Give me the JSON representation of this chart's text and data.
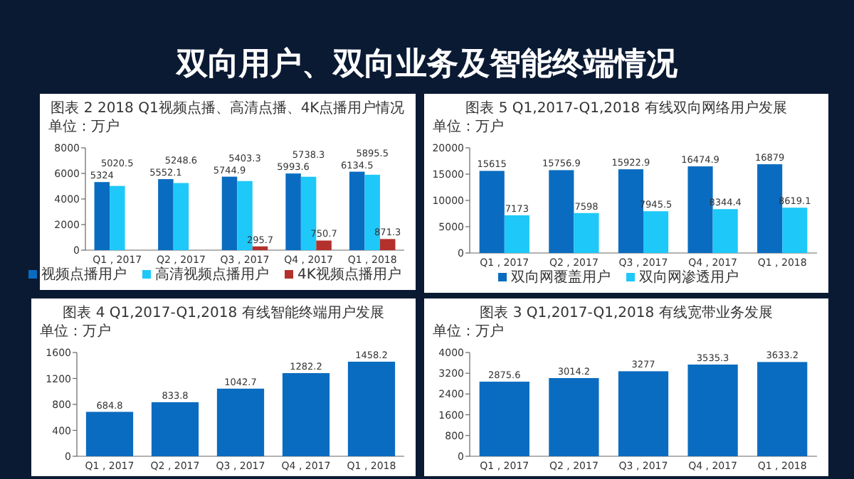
{
  "chart_data": [
    {
      "type": "other",
      "title": "双向用户、双向业务及智能终端情况"
    },
    {
      "type": "bar",
      "title": "图表 2 2018 Q1视频点播、高清点播、4K点播用户情况",
      "annotations": [
        "单位：万户"
      ],
      "categories": [
        "Q1 , 2017",
        "Q2 , 2017",
        "Q3 , 2017",
        "Q4 , 2017",
        "Q1 , 2018"
      ],
      "series": [
        {
          "name": "视频点播用户",
          "color": "#0a6cc0",
          "values": [
            5324,
            5552.1,
            5744.9,
            5993.6,
            6134.5
          ]
        },
        {
          "name": "高清视频点播用户",
          "color": "#1ec8f8",
          "values": [
            5020.5,
            5248.6,
            5403.3,
            5738.3,
            5895.5
          ]
        },
        {
          "name": "4K视频点播用户",
          "color": "#b3302c",
          "values": [
            null,
            null,
            295.7,
            750.7,
            871.3
          ]
        }
      ],
      "ylim": [
        0,
        8000
      ],
      "yticks": [
        0,
        2000,
        4000,
        6000,
        8000
      ],
      "data_labels": true,
      "legend": "bottom"
    },
    {
      "type": "bar",
      "title": "图表 5 Q1,2017-Q1,2018  有线双向网络用户发展",
      "annotations": [
        "单位：万户"
      ],
      "categories": [
        "Q1 , 2017",
        "Q2 , 2017",
        "Q3 , 2017",
        "Q4 , 2017",
        "Q1 , 2018"
      ],
      "series": [
        {
          "name": "双向网覆盖用户",
          "color": "#0a6cc0",
          "values": [
            15615,
            15756.9,
            15922.9,
            16474.9,
            16879
          ]
        },
        {
          "name": "双向网渗透用户",
          "color": "#1ec8f8",
          "values": [
            7173,
            7598,
            7945.5,
            8344.4,
            8619.1
          ]
        }
      ],
      "ylim": [
        0,
        20000
      ],
      "yticks": [
        0,
        5000,
        10000,
        15000,
        20000
      ],
      "data_labels": true,
      "legend": "bottom"
    },
    {
      "type": "bar",
      "title": "图表 4 Q1,2017-Q1,2018  有线智能终端用户发展",
      "annotations": [
        "单位：万户"
      ],
      "categories": [
        "Q1 , 2017",
        "Q2 , 2017",
        "Q3 , 2017",
        "Q4 , 2017",
        "Q1 , 2018"
      ],
      "series": [
        {
          "color": "#0a6cc0",
          "values": [
            684.8,
            833.8,
            1042.7,
            1282.2,
            1458.2
          ]
        }
      ],
      "ylim": [
        0,
        1600
      ],
      "yticks": [
        0,
        400,
        800,
        1200,
        1600
      ],
      "data_labels": true
    },
    {
      "type": "bar",
      "title": "图表 3 Q1,2017-Q1,2018  有线宽带业务发展",
      "annotations": [
        "单位：万户"
      ],
      "categories": [
        "Q1 , 2017",
        "Q2 , 2017",
        "Q3 , 2017",
        "Q4 , 2017",
        "Q1 , 2018"
      ],
      "series": [
        {
          "color": "#0a6cc0",
          "values": [
            2875.6,
            3014.2,
            3277,
            3535.3,
            3633.2
          ]
        }
      ],
      "ylim": [
        0,
        4000
      ],
      "yticks": [
        0,
        800,
        1600,
        2400,
        3200,
        4000
      ],
      "data_labels": true
    }
  ]
}
